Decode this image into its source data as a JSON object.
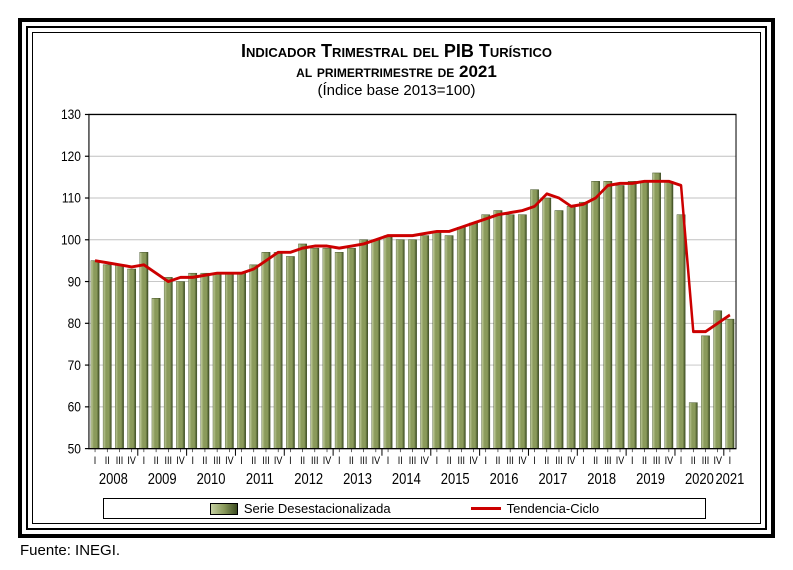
{
  "title": {
    "line1": "Indicador Trimestral del PIB Turístico",
    "line2": "al primertrimestre de 2021",
    "line1_fontsize": 18,
    "line2_fontsize": 17,
    "subtitle": "(Índice base 2013=100)",
    "subtitle_fontsize": 15
  },
  "chart": {
    "type": "bar+line",
    "ylim": [
      50,
      130
    ],
    "ytick_step": 10,
    "yticks": [
      50,
      60,
      70,
      80,
      90,
      100,
      110,
      120,
      130
    ],
    "background_color": "#ffffff",
    "grid_color": "#c0c0c0",
    "axis_color": "#000000",
    "plot_border": true,
    "years": [
      2008,
      2009,
      2010,
      2011,
      2012,
      2013,
      2014,
      2015,
      2016,
      2017,
      2018,
      2019,
      2020,
      2021
    ],
    "quarters_per_year": [
      4,
      4,
      4,
      4,
      4,
      4,
      4,
      4,
      4,
      4,
      4,
      4,
      4,
      1
    ],
    "quarter_labels": [
      "I",
      "II",
      "III",
      "IV"
    ],
    "bar_color": "#8a9a5b",
    "bar_highlight": "#c4cfa1",
    "bar_border": "#3a4a1f",
    "bar_width": 0.68,
    "bar_values": [
      95,
      94,
      94,
      93,
      97,
      86,
      91,
      90,
      92,
      92,
      92,
      92,
      92,
      94,
      97,
      97,
      96,
      99,
      98,
      98,
      97,
      98,
      100,
      100,
      101,
      100,
      100,
      101,
      102,
      101,
      103,
      104,
      106,
      107,
      106,
      106,
      112,
      110,
      107,
      108,
      109,
      114,
      114,
      113,
      114,
      114,
      116,
      114,
      106,
      61,
      77,
      83,
      81
    ],
    "line_color": "#cc0000",
    "line_width": 2.5,
    "line_values": [
      95,
      94.5,
      94,
      93.5,
      94,
      92,
      90,
      91,
      91,
      91.5,
      92,
      92,
      92,
      93,
      95,
      97,
      97,
      98,
      98.5,
      98.5,
      98,
      98.5,
      99,
      100,
      101,
      101,
      101,
      101.5,
      102,
      102,
      103,
      104,
      105,
      106,
      106.5,
      107,
      108,
      111,
      110,
      108,
      108.5,
      110,
      113,
      113.5,
      113.5,
      114,
      114,
      114,
      113,
      78,
      78,
      80,
      82
    ],
    "legend": {
      "series1": "Serie Desestacionalizada",
      "series2": "Tendencia-Ciclo"
    }
  },
  "source": "Fuente: INEGI."
}
